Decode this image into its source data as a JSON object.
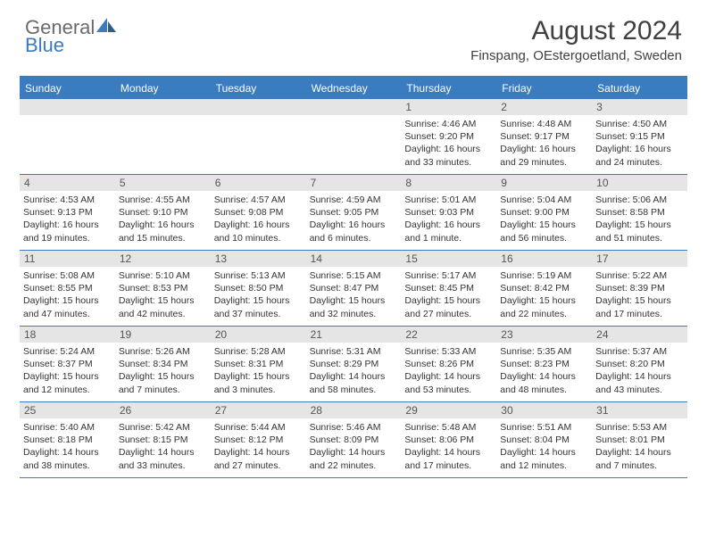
{
  "brand": {
    "part1": "General",
    "part2": "Blue"
  },
  "title": "August 2024",
  "location": "Finspang, OEstergoetland, Sweden",
  "weekdays": [
    "Sunday",
    "Monday",
    "Tuesday",
    "Wednesday",
    "Thursday",
    "Friday",
    "Saturday"
  ],
  "colors": {
    "accent": "#3b7bbf",
    "daynum_bg": "#e5e5e5",
    "text": "#333333",
    "title": "#404040"
  },
  "weeks": [
    [
      {
        "n": "",
        "sr": "",
        "ss": "",
        "dl": ""
      },
      {
        "n": "",
        "sr": "",
        "ss": "",
        "dl": ""
      },
      {
        "n": "",
        "sr": "",
        "ss": "",
        "dl": ""
      },
      {
        "n": "",
        "sr": "",
        "ss": "",
        "dl": ""
      },
      {
        "n": "1",
        "sr": "Sunrise: 4:46 AM",
        "ss": "Sunset: 9:20 PM",
        "dl": "Daylight: 16 hours and 33 minutes."
      },
      {
        "n": "2",
        "sr": "Sunrise: 4:48 AM",
        "ss": "Sunset: 9:17 PM",
        "dl": "Daylight: 16 hours and 29 minutes."
      },
      {
        "n": "3",
        "sr": "Sunrise: 4:50 AM",
        "ss": "Sunset: 9:15 PM",
        "dl": "Daylight: 16 hours and 24 minutes."
      }
    ],
    [
      {
        "n": "4",
        "sr": "Sunrise: 4:53 AM",
        "ss": "Sunset: 9:13 PM",
        "dl": "Daylight: 16 hours and 19 minutes."
      },
      {
        "n": "5",
        "sr": "Sunrise: 4:55 AM",
        "ss": "Sunset: 9:10 PM",
        "dl": "Daylight: 16 hours and 15 minutes."
      },
      {
        "n": "6",
        "sr": "Sunrise: 4:57 AM",
        "ss": "Sunset: 9:08 PM",
        "dl": "Daylight: 16 hours and 10 minutes."
      },
      {
        "n": "7",
        "sr": "Sunrise: 4:59 AM",
        "ss": "Sunset: 9:05 PM",
        "dl": "Daylight: 16 hours and 6 minutes."
      },
      {
        "n": "8",
        "sr": "Sunrise: 5:01 AM",
        "ss": "Sunset: 9:03 PM",
        "dl": "Daylight: 16 hours and 1 minute."
      },
      {
        "n": "9",
        "sr": "Sunrise: 5:04 AM",
        "ss": "Sunset: 9:00 PM",
        "dl": "Daylight: 15 hours and 56 minutes."
      },
      {
        "n": "10",
        "sr": "Sunrise: 5:06 AM",
        "ss": "Sunset: 8:58 PM",
        "dl": "Daylight: 15 hours and 51 minutes."
      }
    ],
    [
      {
        "n": "11",
        "sr": "Sunrise: 5:08 AM",
        "ss": "Sunset: 8:55 PM",
        "dl": "Daylight: 15 hours and 47 minutes."
      },
      {
        "n": "12",
        "sr": "Sunrise: 5:10 AM",
        "ss": "Sunset: 8:53 PM",
        "dl": "Daylight: 15 hours and 42 minutes."
      },
      {
        "n": "13",
        "sr": "Sunrise: 5:13 AM",
        "ss": "Sunset: 8:50 PM",
        "dl": "Daylight: 15 hours and 37 minutes."
      },
      {
        "n": "14",
        "sr": "Sunrise: 5:15 AM",
        "ss": "Sunset: 8:47 PM",
        "dl": "Daylight: 15 hours and 32 minutes."
      },
      {
        "n": "15",
        "sr": "Sunrise: 5:17 AM",
        "ss": "Sunset: 8:45 PM",
        "dl": "Daylight: 15 hours and 27 minutes."
      },
      {
        "n": "16",
        "sr": "Sunrise: 5:19 AM",
        "ss": "Sunset: 8:42 PM",
        "dl": "Daylight: 15 hours and 22 minutes."
      },
      {
        "n": "17",
        "sr": "Sunrise: 5:22 AM",
        "ss": "Sunset: 8:39 PM",
        "dl": "Daylight: 15 hours and 17 minutes."
      }
    ],
    [
      {
        "n": "18",
        "sr": "Sunrise: 5:24 AM",
        "ss": "Sunset: 8:37 PM",
        "dl": "Daylight: 15 hours and 12 minutes."
      },
      {
        "n": "19",
        "sr": "Sunrise: 5:26 AM",
        "ss": "Sunset: 8:34 PM",
        "dl": "Daylight: 15 hours and 7 minutes."
      },
      {
        "n": "20",
        "sr": "Sunrise: 5:28 AM",
        "ss": "Sunset: 8:31 PM",
        "dl": "Daylight: 15 hours and 3 minutes."
      },
      {
        "n": "21",
        "sr": "Sunrise: 5:31 AM",
        "ss": "Sunset: 8:29 PM",
        "dl": "Daylight: 14 hours and 58 minutes."
      },
      {
        "n": "22",
        "sr": "Sunrise: 5:33 AM",
        "ss": "Sunset: 8:26 PM",
        "dl": "Daylight: 14 hours and 53 minutes."
      },
      {
        "n": "23",
        "sr": "Sunrise: 5:35 AM",
        "ss": "Sunset: 8:23 PM",
        "dl": "Daylight: 14 hours and 48 minutes."
      },
      {
        "n": "24",
        "sr": "Sunrise: 5:37 AM",
        "ss": "Sunset: 8:20 PM",
        "dl": "Daylight: 14 hours and 43 minutes."
      }
    ],
    [
      {
        "n": "25",
        "sr": "Sunrise: 5:40 AM",
        "ss": "Sunset: 8:18 PM",
        "dl": "Daylight: 14 hours and 38 minutes."
      },
      {
        "n": "26",
        "sr": "Sunrise: 5:42 AM",
        "ss": "Sunset: 8:15 PM",
        "dl": "Daylight: 14 hours and 33 minutes."
      },
      {
        "n": "27",
        "sr": "Sunrise: 5:44 AM",
        "ss": "Sunset: 8:12 PM",
        "dl": "Daylight: 14 hours and 27 minutes."
      },
      {
        "n": "28",
        "sr": "Sunrise: 5:46 AM",
        "ss": "Sunset: 8:09 PM",
        "dl": "Daylight: 14 hours and 22 minutes."
      },
      {
        "n": "29",
        "sr": "Sunrise: 5:48 AM",
        "ss": "Sunset: 8:06 PM",
        "dl": "Daylight: 14 hours and 17 minutes."
      },
      {
        "n": "30",
        "sr": "Sunrise: 5:51 AM",
        "ss": "Sunset: 8:04 PM",
        "dl": "Daylight: 14 hours and 12 minutes."
      },
      {
        "n": "31",
        "sr": "Sunrise: 5:53 AM",
        "ss": "Sunset: 8:01 PM",
        "dl": "Daylight: 14 hours and 7 minutes."
      }
    ]
  ]
}
